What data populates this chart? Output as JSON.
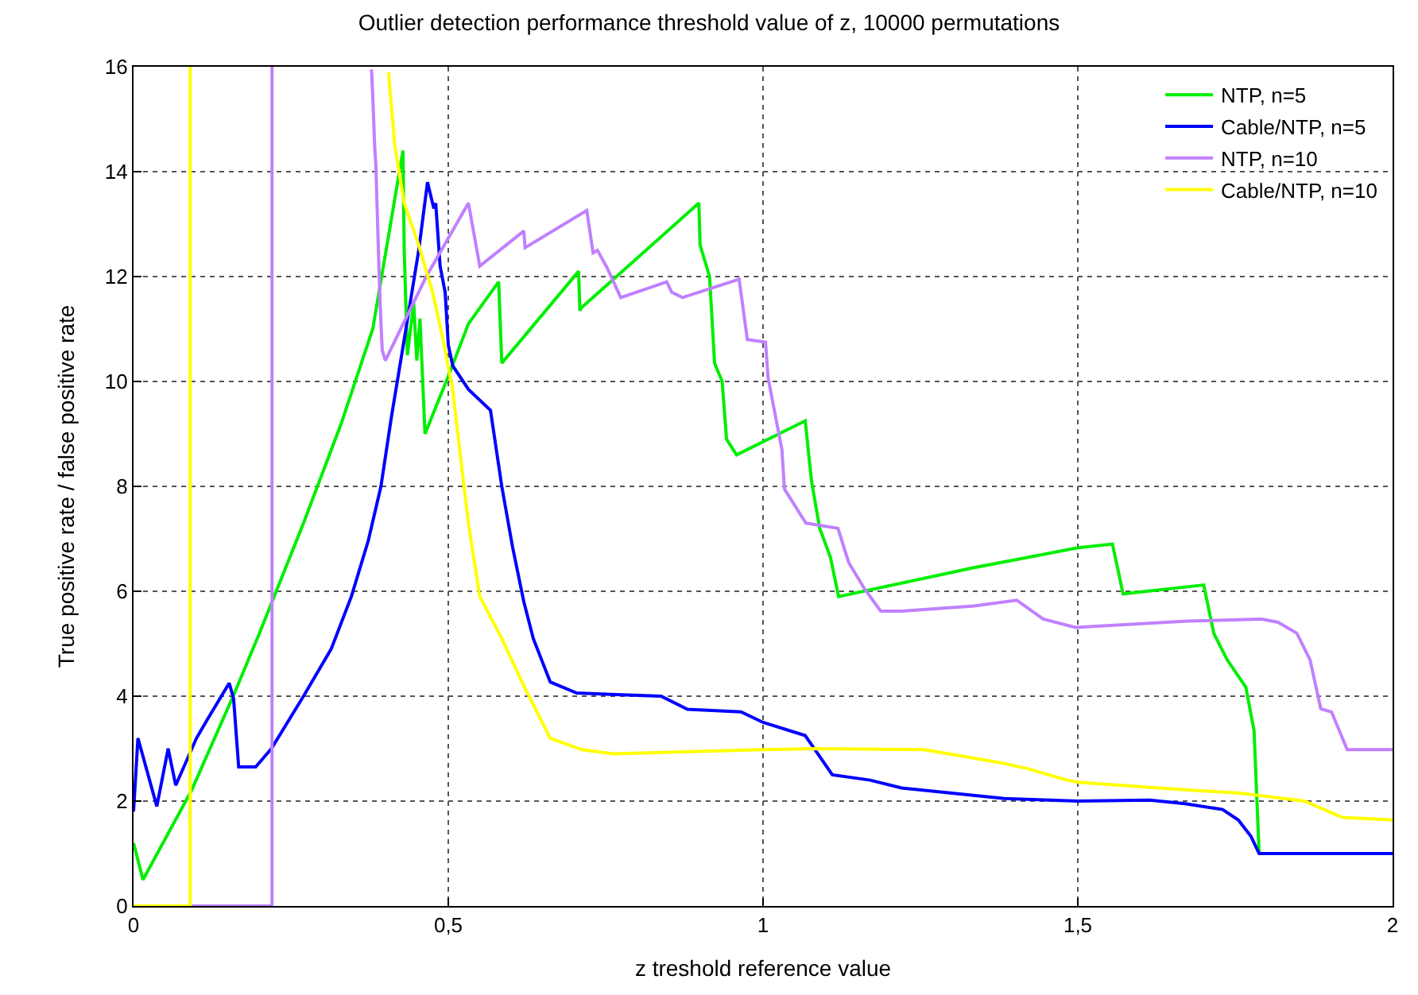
{
  "chart_data": {
    "type": "line",
    "title": "Outlier detection performance threshold value of z, 10000 permutations",
    "xlabel": "z treshold reference value",
    "ylabel": "True positive rate / false positive rate",
    "xlim": [
      0,
      2
    ],
    "ylim": [
      0,
      16
    ],
    "xticks": [
      0,
      {
        "value": 0.5,
        "label": "0,5"
      },
      1,
      {
        "value": 1.5,
        "label": "1,5"
      },
      2
    ],
    "yticks": [
      0,
      2,
      4,
      6,
      8,
      10,
      12,
      14,
      16
    ],
    "grid": true,
    "legend": "top right",
    "marker": "none",
    "series": [
      {
        "name": "NTP, n=5",
        "color": "#00ee00",
        "x": [
          0,
          0.015,
          0.092,
          0.16,
          0.2,
          0.27,
          0.33,
          0.38,
          0.428,
          0.43,
          0.435,
          0.445,
          0.45,
          0.455,
          0.463,
          0.5,
          0.532,
          0.58,
          0.585,
          0.707,
          0.709,
          0.711,
          0.898,
          0.9,
          0.915,
          0.923,
          0.935,
          0.942,
          0.958,
          1.067,
          1.077,
          1.09,
          1.107,
          1.12,
          1.335,
          1.5,
          1.555,
          1.572,
          1.7,
          1.716,
          1.737,
          1.767,
          1.78,
          1.788
        ],
        "values": [
          1.2,
          0.5,
          2.2,
          4.05,
          5.2,
          7.3,
          9.2,
          11.0,
          14.4,
          12.5,
          10.5,
          11.5,
          10.4,
          11.2,
          9.0,
          10.1,
          11.1,
          11.9,
          10.35,
          12.1,
          11.35,
          11.4,
          13.4,
          12.6,
          12.0,
          10.35,
          10.0,
          8.9,
          8.6,
          9.25,
          8.1,
          7.2,
          6.65,
          5.9,
          6.45,
          6.83,
          6.9,
          5.95,
          6.12,
          5.2,
          4.7,
          4.17,
          3.34,
          1.0
        ]
      },
      {
        "name": "Cable/NTP, n=5",
        "color": "#0000ff",
        "x": [
          0,
          0.007,
          0.037,
          0.055,
          0.067,
          0.1,
          0.117,
          0.152,
          0.159,
          0.167,
          0.194,
          0.219,
          0.27,
          0.314,
          0.346,
          0.373,
          0.393,
          0.41,
          0.43,
          0.453,
          0.467,
          0.477,
          0.48,
          0.487,
          0.495,
          0.5,
          0.507,
          0.532,
          0.567,
          0.585,
          0.602,
          0.62,
          0.635,
          0.662,
          0.704,
          0.838,
          0.88,
          0.965,
          1.0,
          1.067,
          1.11,
          1.17,
          1.22,
          1.383,
          1.5,
          1.614,
          1.67,
          1.73,
          1.755,
          1.775,
          1.788,
          2.0
        ],
        "values": [
          1.8,
          3.2,
          1.9,
          3.0,
          2.3,
          3.2,
          3.55,
          4.25,
          3.95,
          2.65,
          2.65,
          3.0,
          4.0,
          4.9,
          5.9,
          6.97,
          8.0,
          9.35,
          10.8,
          12.5,
          13.8,
          13.3,
          13.4,
          12.2,
          11.7,
          10.7,
          10.3,
          9.85,
          9.45,
          8.0,
          6.85,
          5.8,
          5.1,
          4.27,
          4.06,
          4.0,
          3.75,
          3.7,
          3.5,
          3.25,
          2.5,
          2.4,
          2.25,
          2.05,
          2.0,
          2.02,
          1.95,
          1.84,
          1.64,
          1.33,
          1.0,
          1.0
        ]
      },
      {
        "name": "NTP, n=10",
        "color": "#c080ff",
        "x": [
          0,
          0.22,
          0.22,
          0.3,
          0.378,
          0.38,
          0.383,
          0.385,
          0.39,
          0.392,
          0.395,
          0.4,
          0.465,
          0.532,
          0.55,
          0.62,
          0.622,
          0.72,
          0.73,
          0.737,
          0.753,
          0.774,
          0.847,
          0.855,
          0.872,
          0.962,
          0.975,
          1.004,
          1.008,
          1.03,
          1.034,
          1.068,
          1.119,
          1.136,
          1.161,
          1.187,
          1.22,
          1.335,
          1.403,
          1.445,
          1.496,
          1.674,
          1.792,
          1.818,
          1.848,
          1.869,
          1.886,
          1.903,
          1.928,
          2.0
        ],
        "values": [
          0,
          0,
          16,
          null,
          15.95,
          15.45,
          14.5,
          14.1,
          12.1,
          11.4,
          10.6,
          10.4,
          12.0,
          13.4,
          12.2,
          12.87,
          12.55,
          13.26,
          12.45,
          12.5,
          12.15,
          11.6,
          11.9,
          11.7,
          11.6,
          11.95,
          10.8,
          10.75,
          10.07,
          8.7,
          7.95,
          7.3,
          7.2,
          6.55,
          6.05,
          5.62,
          5.62,
          5.72,
          5.83,
          5.47,
          5.31,
          5.43,
          5.47,
          5.41,
          5.2,
          4.69,
          3.76,
          3.7,
          2.98,
          2.98
        ]
      },
      {
        "name": "Cable/NTP, n=10",
        "color": "#ffff00",
        "x": [
          0,
          0.09,
          0.09,
          0.3,
          0.405,
          0.415,
          0.43,
          0.453,
          0.475,
          0.49,
          0.507,
          0.52,
          0.532,
          0.55,
          0.585,
          0.62,
          0.662,
          0.712,
          0.762,
          1.0,
          1.085,
          1.255,
          1.306,
          1.382,
          1.42,
          1.48,
          1.5,
          1.614,
          1.758,
          1.86,
          1.92,
          2.0
        ],
        "values": [
          0,
          0,
          16,
          null,
          15.9,
          14.5,
          13.4,
          12.6,
          11.7,
          10.9,
          9.85,
          8.5,
          7.3,
          5.9,
          5.1,
          4.2,
          3.2,
          2.98,
          2.9,
          2.98,
          3.0,
          2.98,
          2.88,
          2.72,
          2.62,
          2.41,
          2.36,
          2.26,
          2.15,
          2.0,
          1.69,
          1.64
        ]
      }
    ]
  }
}
